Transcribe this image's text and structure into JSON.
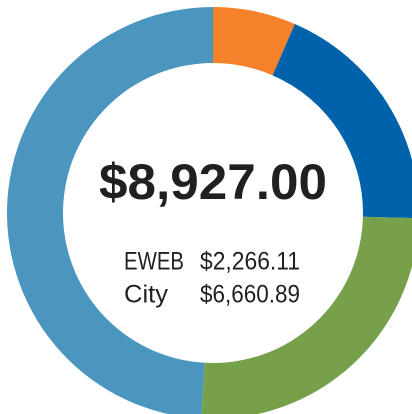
{
  "chart_data": {
    "type": "donut",
    "categories": [
      null,
      null,
      null,
      null
    ],
    "series": [
      {
        "values": [
          6.5,
          18.9,
          25.5,
          49.1
        ],
        "colors": [
          "#f5822a",
          "#0062ab",
          "#77a04b",
          "#4a96bf"
        ]
      }
    ],
    "center_label": "$8,927.00",
    "breakdown": [
      {
        "label": "EWEB",
        "amount": "$2,266.11"
      },
      {
        "label": "City",
        "amount": "$6,660.89"
      }
    ]
  }
}
